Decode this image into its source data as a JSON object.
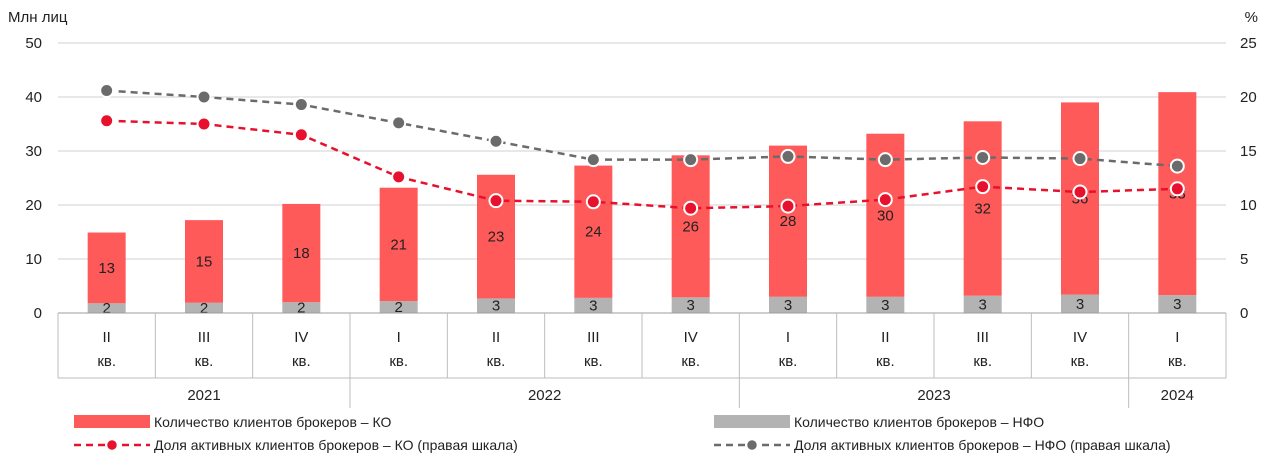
{
  "chart_data": {
    "type": "bar",
    "left_unit": "Млн лиц",
    "right_unit": "%",
    "ylim_left": [
      0,
      50
    ],
    "ylim_right": [
      0,
      25
    ],
    "left_ticks": [
      0,
      10,
      20,
      30,
      40,
      50
    ],
    "right_ticks": [
      0,
      5,
      10,
      15,
      20,
      25
    ],
    "categories": [
      {
        "quarter": "II",
        "suffix": "кв."
      },
      {
        "quarter": "III",
        "suffix": "кв."
      },
      {
        "quarter": "IV",
        "suffix": "кв."
      },
      {
        "quarter": "I",
        "suffix": "кв."
      },
      {
        "quarter": "II",
        "suffix": "кв."
      },
      {
        "quarter": "III",
        "suffix": "кв."
      },
      {
        "quarter": "IV",
        "suffix": "кв."
      },
      {
        "quarter": "I",
        "suffix": "кв."
      },
      {
        "quarter": "II",
        "suffix": "кв."
      },
      {
        "quarter": "III",
        "suffix": "кв."
      },
      {
        "quarter": "IV",
        "suffix": "кв."
      },
      {
        "quarter": "I",
        "suffix": "кв."
      }
    ],
    "years": [
      {
        "label": "2021",
        "start": 0,
        "end": 2
      },
      {
        "label": "2022",
        "start": 3,
        "end": 6
      },
      {
        "label": "2023",
        "start": 7,
        "end": 10
      },
      {
        "label": "2024",
        "start": 11,
        "end": 11
      }
    ],
    "series": [
      {
        "name": "Количество клиентов брокеров – НФО",
        "kind": "bar",
        "axis": "left",
        "color": "#b3b3b3",
        "values": [
          1.8,
          1.9,
          2.0,
          2.2,
          2.7,
          2.8,
          2.9,
          3.0,
          3.0,
          3.2,
          3.4,
          3.3
        ],
        "labels": [
          "2",
          "2",
          "2",
          "2",
          "3",
          "3",
          "3",
          "3",
          "3",
          "3",
          "3",
          "3"
        ]
      },
      {
        "name": "Количество клиентов брокеров – КО",
        "kind": "bar",
        "axis": "left",
        "color": "#ff5a5a",
        "values": [
          13.1,
          15.3,
          18.2,
          21.0,
          22.9,
          24.5,
          26.3,
          28.0,
          30.2,
          32.3,
          35.6,
          37.6
        ],
        "labels": [
          "13",
          "15",
          "18",
          "21",
          "23",
          "24",
          "26",
          "28",
          "30",
          "32",
          "36",
          "38"
        ]
      },
      {
        "name": "Доля активных клиентов брокеров – КО (правая шкала)",
        "kind": "line",
        "axis": "right",
        "color": "#e8112d",
        "values": [
          17.8,
          17.5,
          16.5,
          12.6,
          10.4,
          10.3,
          9.7,
          9.9,
          10.5,
          11.7,
          11.2,
          11.5
        ]
      },
      {
        "name": "Доля активных клиентов брокеров – НФО (правая шкала)",
        "kind": "line",
        "axis": "right",
        "color": "#6b6b6b",
        "values": [
          20.6,
          20.0,
          19.3,
          17.6,
          15.9,
          14.2,
          14.2,
          14.5,
          14.2,
          14.4,
          14.3,
          13.6
        ]
      }
    ],
    "grid": true,
    "legend_position": "bottom"
  }
}
